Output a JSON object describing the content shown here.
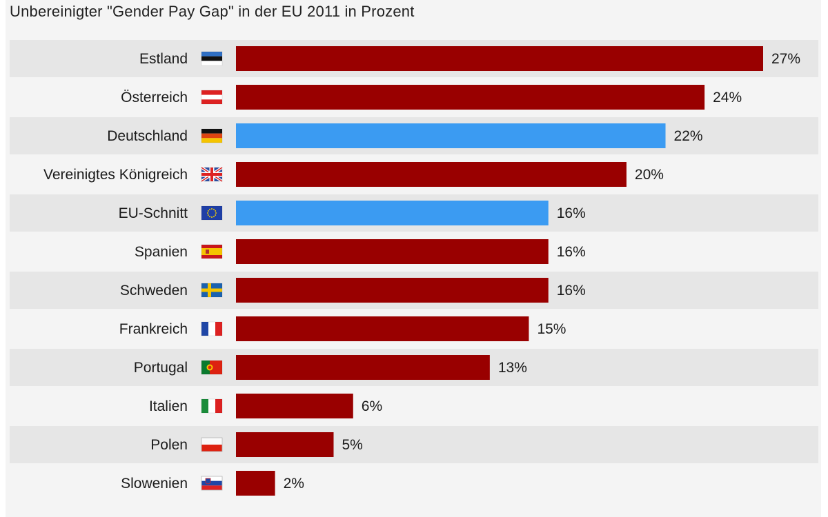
{
  "subtitle": "Unbereinigter \"Gender Pay Gap\" in der EU 2011 in Prozent",
  "colors": {
    "default_bar": "#990000",
    "highlight_bar": "#3b9bf2",
    "row_stripe": "#e6e6e6"
  },
  "chart_data": {
    "type": "bar",
    "orientation": "horizontal",
    "title": "",
    "subtitle": "Unbereinigter \"Gender Pay Gap\" in der EU 2011 in Prozent",
    "xlabel": "",
    "ylabel": "",
    "unit": "%",
    "xlim": [
      0,
      27
    ],
    "grid": false,
    "categories": [
      "Estland",
      "Österreich",
      "Deutschland",
      "Vereinigtes Königreich",
      "EU-Schnitt",
      "Spanien",
      "Schweden",
      "Frankreich",
      "Portugal",
      "Italien",
      "Polen",
      "Slowenien"
    ],
    "values": [
      27,
      24,
      22,
      20,
      16,
      16,
      16,
      15,
      13,
      6,
      5,
      2
    ],
    "value_labels": [
      "27%",
      "24%",
      "22%",
      "20%",
      "16%",
      "16%",
      "16%",
      "15%",
      "13%",
      "6%",
      "5%",
      "2%"
    ],
    "highlighted": [
      "Deutschland",
      "EU-Schnitt"
    ],
    "flags": [
      "flag-estonia-icon",
      "flag-austria-icon",
      "flag-germany-icon",
      "flag-uk-icon",
      "flag-eu-icon",
      "flag-spain-icon",
      "flag-sweden-icon",
      "flag-france-icon",
      "flag-portugal-icon",
      "flag-italy-icon",
      "flag-poland-icon",
      "flag-slovenia-icon"
    ]
  }
}
